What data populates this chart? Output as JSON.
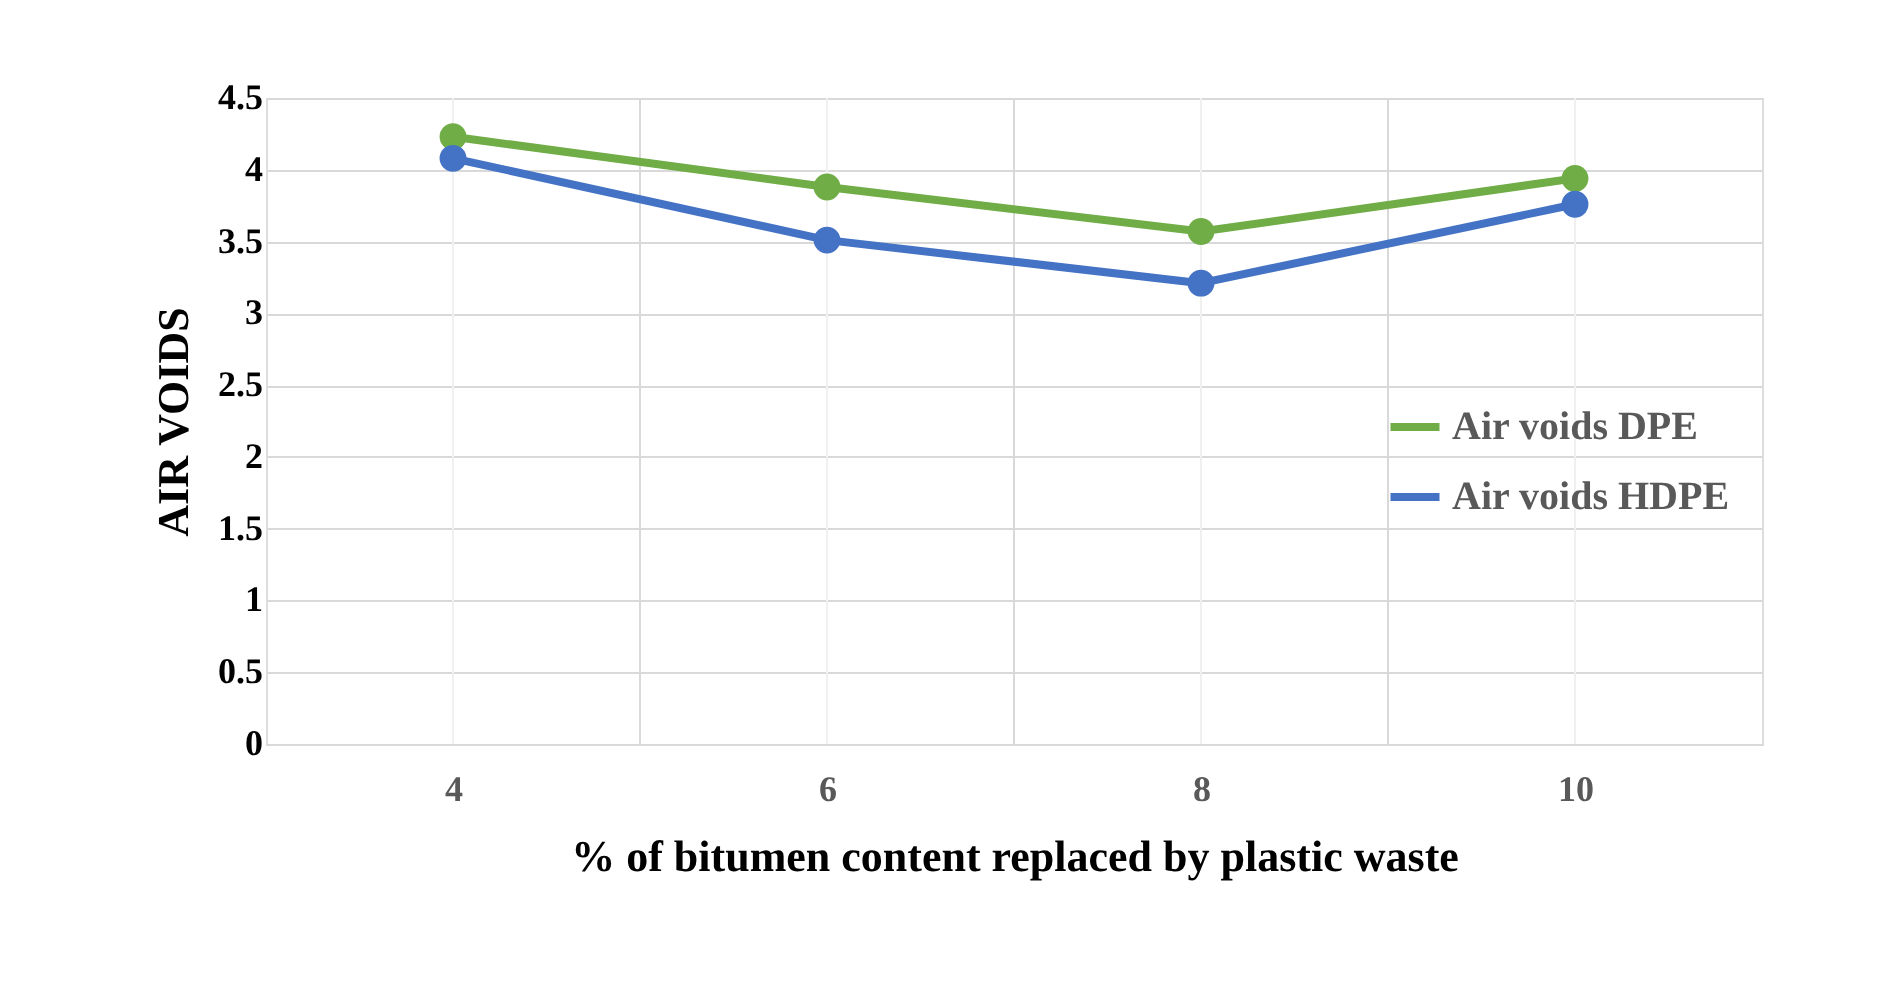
{
  "chart_data": {
    "type": "line",
    "xlabel": "% of bitumen content replaced by plastic waste",
    "ylabel": "AIR VOIDS",
    "categories": [
      "4",
      "6",
      "8",
      "10"
    ],
    "series": [
      {
        "name": "Air voids DPE",
        "color": "#70ad47",
        "values": [
          4.23,
          3.88,
          3.57,
          3.94
        ]
      },
      {
        "name": "Air voids HDPE",
        "color": "#4472c4",
        "values": [
          4.08,
          3.51,
          3.21,
          3.76
        ]
      }
    ],
    "ylim": [
      0,
      4.5
    ],
    "yticks": [
      0,
      0.5,
      1,
      1.5,
      2,
      2.5,
      3,
      3.5,
      4,
      4.5
    ],
    "grid": true,
    "legend": "right",
    "marker": "circle",
    "line_style": "solid"
  }
}
